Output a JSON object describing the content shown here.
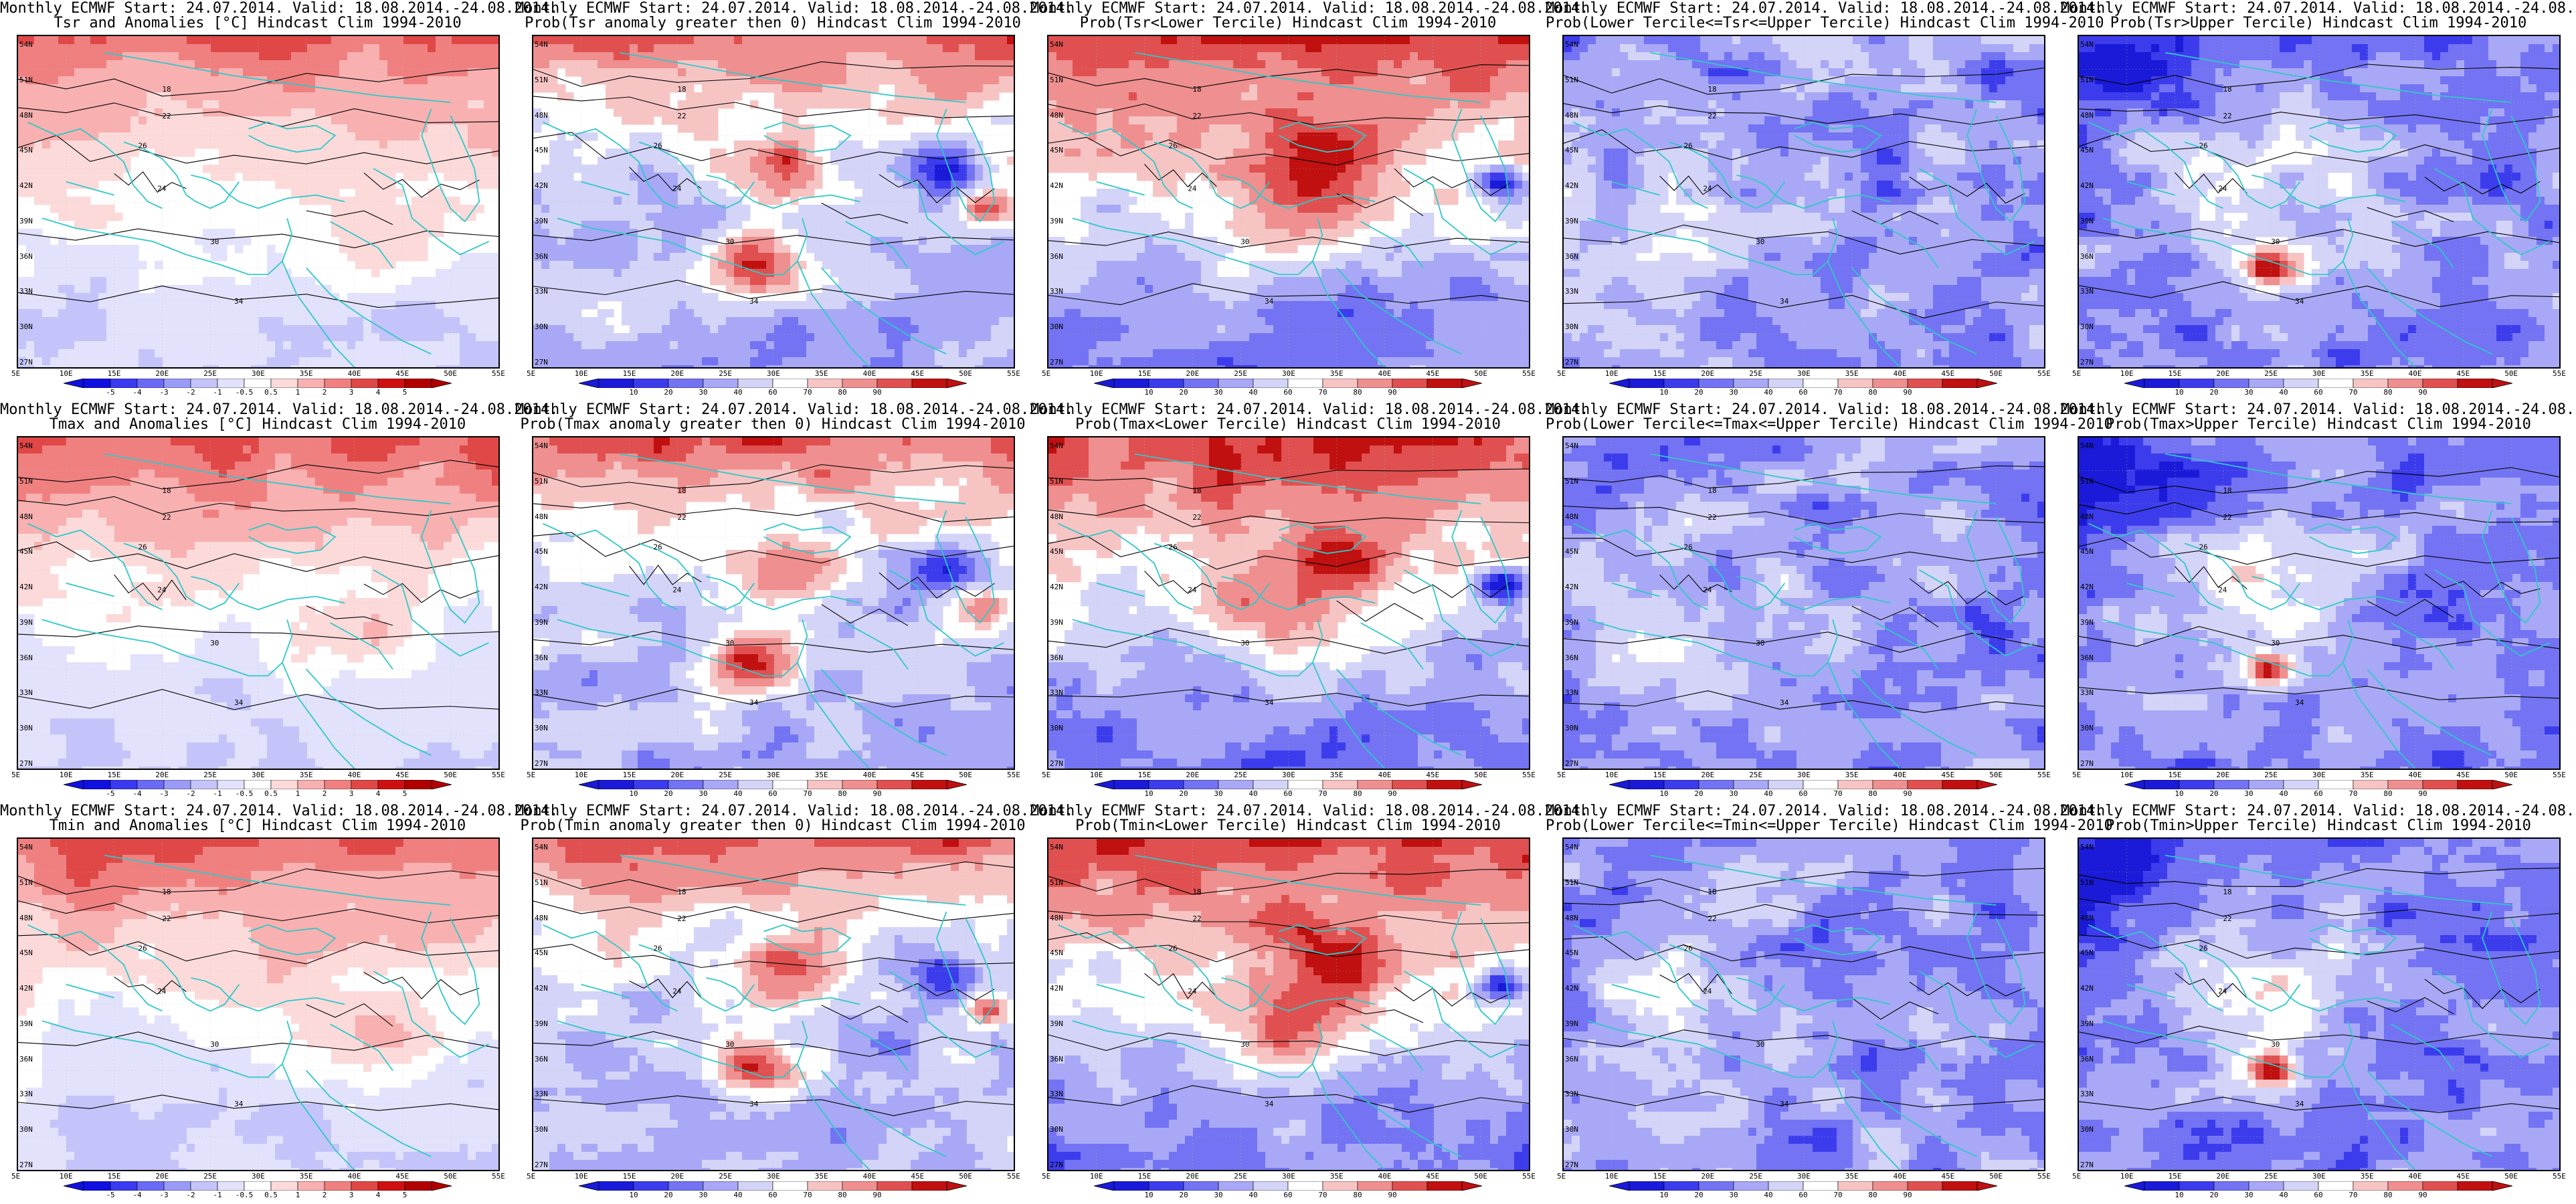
{
  "header_prefix": "Monthly ECMWF Start: 24.07.2014. Valid: 18.08.2014.-24.08.2014.",
  "lat_labels": [
    "54N",
    "51N",
    "48N",
    "45N",
    "42N",
    "39N",
    "36N",
    "33N",
    "30N",
    "27N"
  ],
  "lon_labels": [
    "5E",
    "10E",
    "15E",
    "20E",
    "25E",
    "30E",
    "35E",
    "40E",
    "45E",
    "50E",
    "55E"
  ],
  "anomaly_levels": [
    "-5",
    "-4",
    "-3",
    "-2",
    "-1",
    "-0.5",
    "0.5",
    "1",
    "2",
    "3",
    "4",
    "5"
  ],
  "prob_levels": [
    "10",
    "20",
    "30",
    "40",
    "60",
    "70",
    "80",
    "90"
  ],
  "rows": [
    {
      "variable": "Tsr",
      "panels": [
        {
          "title2": "Tsr and Anomalies [°C] Hindcast Clim 1994-2010",
          "kind": "anomaly",
          "pattern": "anom"
        },
        {
          "title2": "Prob(Tsr anomaly greater then 0) Hindcast Clim 1994-2010",
          "kind": "prob",
          "pattern": "warm"
        },
        {
          "title2": "Prob(Tsr<Lower Tercile) Hindcast Clim 1994-2010",
          "kind": "prob",
          "pattern": "cold"
        },
        {
          "title2": "Prob(Lower Tercile<=Tsr<=Upper Tercile) Hindcast Clim 1994-2010",
          "kind": "prob",
          "pattern": "mid"
        },
        {
          "title2": "Prob(Tsr>Upper Tercile) Hindcast Clim 1994-2010",
          "kind": "prob",
          "pattern": "upper"
        }
      ]
    },
    {
      "variable": "Tmax",
      "panels": [
        {
          "title2": "Tmax and Anomalies [°C] Hindcast Clim 1994-2010",
          "kind": "anomaly",
          "pattern": "anom"
        },
        {
          "title2": "Prob(Tmax anomaly greater then 0) Hindcast Clim 1994-2010",
          "kind": "prob",
          "pattern": "warm"
        },
        {
          "title2": "Prob(Tmax<Lower Tercile) Hindcast Clim 1994-2010",
          "kind": "prob",
          "pattern": "cold"
        },
        {
          "title2": "Prob(Lower Tercile<=Tmax<=Upper Tercile) Hindcast Clim 1994-2010",
          "kind": "prob",
          "pattern": "mid"
        },
        {
          "title2": "Prob(Tmax>Upper Tercile) Hindcast Clim 1994-2010",
          "kind": "prob",
          "pattern": "upper"
        }
      ]
    },
    {
      "variable": "Tmin",
      "panels": [
        {
          "title2": "Tmin and Anomalies [°C] Hindcast Clim 1994-2010",
          "kind": "anomaly",
          "pattern": "anom"
        },
        {
          "title2": "Prob(Tmin anomaly greater then 0) Hindcast Clim 1994-2010",
          "kind": "prob",
          "pattern": "warm"
        },
        {
          "title2": "Prob(Tmin<Lower Tercile) Hindcast Clim 1994-2010",
          "kind": "prob",
          "pattern": "cold"
        },
        {
          "title2": "Prob(Lower Tercile<=Tmin<=Upper Tercile) Hindcast Clim 1994-2010",
          "kind": "prob",
          "pattern": "mid"
        },
        {
          "title2": "Prob(Tmin>Upper Tercile) Hindcast Clim 1994-2010",
          "kind": "prob",
          "pattern": "upper"
        }
      ]
    }
  ],
  "colors": {
    "anomaly_palette": [
      "#1010e0",
      "#3a3af0",
      "#6a6af5",
      "#9a9af8",
      "#c4c4fa",
      "#e2e2fc",
      "#ffffff",
      "#fcdada",
      "#f8b0b0",
      "#f08080",
      "#e04848",
      "#d01010",
      "#b00000"
    ],
    "prob_palette": [
      "#1a1ad8",
      "#3c3ced",
      "#7373f3",
      "#a8a8f6",
      "#d4d4f8",
      "#ffffff",
      "#f7c4c4",
      "#ef8f8f",
      "#e05050",
      "#c01010"
    ],
    "coast": "#30c8c8",
    "contour": "#000000",
    "frame": "#000000"
  }
}
